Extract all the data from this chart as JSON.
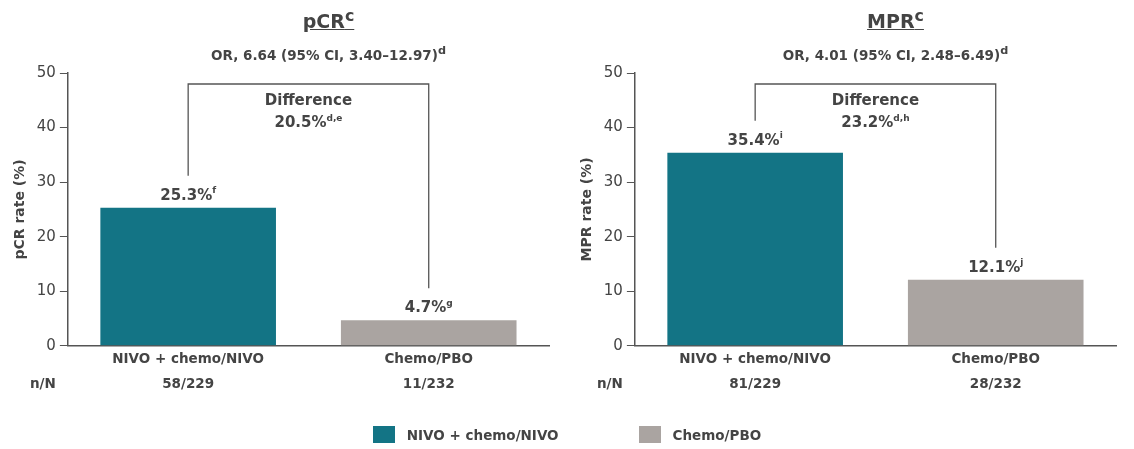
{
  "chart_data": [
    {
      "type": "bar",
      "title": "pCR$^{c}$",
      "subtitle": "OR, 6.64 (95% CI, 3.40–12.97)$^{d}$",
      "ylabel": "pCR rate (%)",
      "categories": [
        "NIVO + chemo/NIVO",
        "Chemo/PBO"
      ],
      "series": [
        {
          "name": "NIVO + chemo/NIVO",
          "color": "#137485",
          "values": [
            25.3,
            null
          ],
          "value_labels": [
            "25.3%$^{f}$",
            null
          ]
        },
        {
          "name": "Chemo/PBO",
          "color": "#aaa4a1",
          "values": [
            null,
            4.7
          ],
          "value_labels": [
            null,
            "4.7%$^{g}$"
          ]
        }
      ],
      "ylim": [
        0,
        50
      ],
      "yticks": [
        0,
        10,
        20,
        30,
        40,
        50
      ],
      "grid": false,
      "legend": "bottom",
      "annotations": [
        "Difference\n20.5%$^{d,e}$",
        "n/N",
        "58/229",
        "11/232"
      ]
    },
    {
      "type": "bar",
      "title": "MPR$^{c}$",
      "subtitle": "OR, 4.01 (95% CI, 2.48–6.49)$^{d}$",
      "ylabel": "MPR rate (%)",
      "categories": [
        "NIVO + chemo/NIVO",
        "Chemo/PBO"
      ],
      "series": [
        {
          "color": "#137485",
          "values": [
            35.4,
            null
          ],
          "value_labels": [
            "35.4%$^{i}$",
            null
          ]
        },
        {
          "color": "#aaa4a1",
          "values": [
            null,
            12.1
          ],
          "value_labels": [
            null,
            "12.1%$^{j}$"
          ]
        }
      ],
      "ylim": [
        0,
        50
      ],
      "yticks": [
        0,
        10,
        20,
        30,
        40,
        50
      ],
      "grid": false,
      "annotations": [
        "Difference\n23.2%$^{d,h}$",
        "n/N",
        "81/229",
        "28/232"
      ]
    }
  ]
}
